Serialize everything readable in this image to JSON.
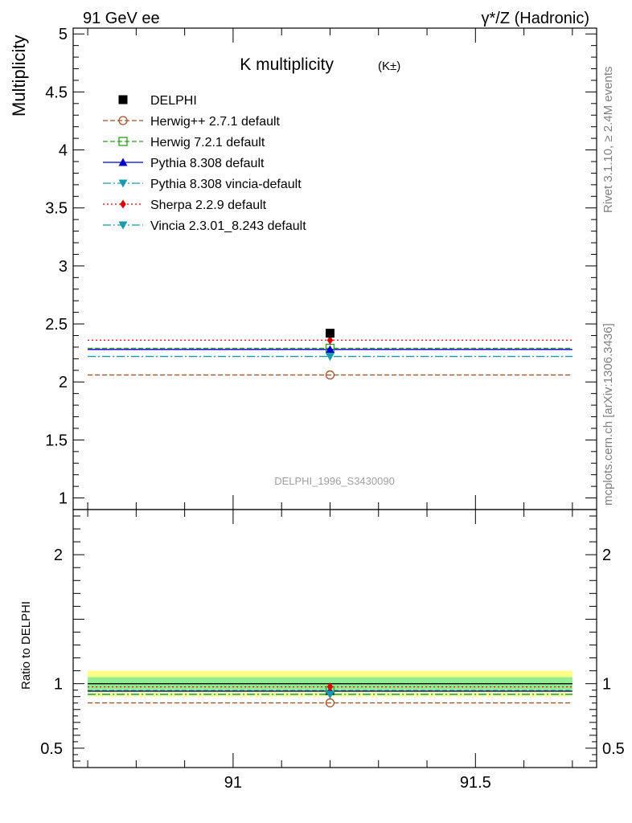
{
  "header": {
    "left": "91 GeV ee",
    "right": "γ*/Z (Hadronic)"
  },
  "side_labels": {
    "rivet": "Rivet 3.1.10, ≥ 2.4M events",
    "mcplots": "mcplots.cern.ch [arXiv:1306.3436]"
  },
  "chart_data": {
    "type": "scatter",
    "title": "K multiplicity",
    "title_sub": "(K±)",
    "analysis_id": "DELPHI_1996_S3430090",
    "ylabel": "Multiplicity",
    "ratio_ylabel": "Ratio to DELPHI",
    "xlim": [
      90.67,
      91.75
    ],
    "ylim": [
      0.9,
      5.05
    ],
    "ratio_ylim": [
      0.35,
      2.35
    ],
    "x_ticks": [
      "91",
      "91.5"
    ],
    "y_ticks": [
      "1",
      "1.5",
      "2",
      "2.5",
      "3",
      "3.5",
      "4",
      "4.5",
      "5"
    ],
    "ratio_y_ticks": [
      "0.5",
      "1",
      "2"
    ],
    "x_range": [
      90.7,
      91.7
    ],
    "x_point": 91.2,
    "data": {
      "name": "DELPHI",
      "y": 2.42,
      "color": "#000000",
      "ratio_band_inner": [
        0.95,
        1.05
      ],
      "ratio_band_outer": [
        0.9,
        1.1
      ]
    },
    "series": [
      {
        "name": "Herwig++ 2.7.1 default",
        "y": 2.06,
        "color": "#a0522d",
        "marker": "open-circle",
        "dash": "6,3"
      },
      {
        "name": "Herwig 7.2.1 default",
        "y": 2.29,
        "color": "#2e9e1f",
        "marker": "open-square",
        "dash": "6,3"
      },
      {
        "name": "Pythia 8.308 default",
        "y": 2.28,
        "color": "#0000cc",
        "marker": "triangle-up",
        "dash": ""
      },
      {
        "name": "Pythia 8.308 vincia-default",
        "y": 2.22,
        "color": "#1a9aaa",
        "marker": "triangle-down",
        "dash": "10,3,2,3"
      },
      {
        "name": "Sherpa 2.2.9 default",
        "y": 2.36,
        "color": "#dd0000",
        "marker": "diamond",
        "dash": "2,3"
      },
      {
        "name": "Vincia 2.3.01_8.243 default",
        "y": 2.22,
        "color": "#1a9aaa",
        "marker": "triangle-down",
        "dash": "10,3,2,3"
      }
    ]
  }
}
